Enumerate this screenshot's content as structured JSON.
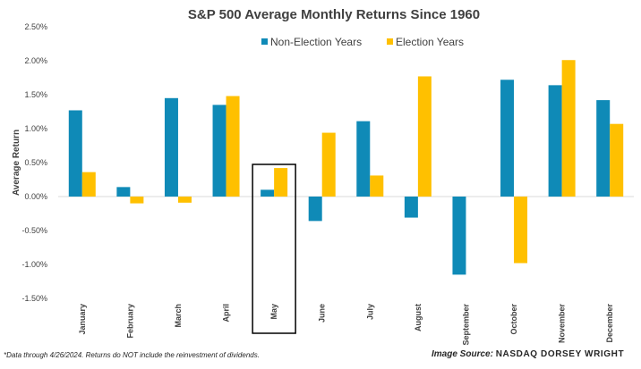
{
  "chart_data": {
    "type": "bar",
    "title": "S&P 500 Average Monthly Returns Since 1960",
    "ylabel": "Average Return",
    "xlabel": "",
    "ylim": [
      -1.5,
      2.5
    ],
    "yticks": [
      "2.50%",
      "2.00%",
      "1.50%",
      "1.00%",
      "0.50%",
      "0.00%",
      "-0.50%",
      "-1.00%",
      "-1.50%"
    ],
    "ytick_values": [
      2.5,
      2.0,
      1.5,
      1.0,
      0.5,
      0.0,
      -0.5,
      -1.0,
      -1.5
    ],
    "categories": [
      "January",
      "February",
      "March",
      "April",
      "May",
      "June",
      "July",
      "August",
      "September",
      "October",
      "November",
      "December"
    ],
    "series": [
      {
        "name": "Non-Election Years",
        "color": "#0f8ab7",
        "values": [
          1.27,
          0.14,
          1.45,
          1.35,
          0.1,
          -0.36,
          1.11,
          -0.31,
          -1.15,
          1.72,
          1.64,
          1.42
        ]
      },
      {
        "name": "Election Years",
        "color": "#ffc000",
        "values": [
          0.36,
          -0.1,
          -0.09,
          1.48,
          0.42,
          0.94,
          0.31,
          1.77,
          null,
          -0.98,
          2.01,
          1.07
        ]
      }
    ],
    "legend": "top",
    "grid": false,
    "highlight_category": "May"
  },
  "footnote": "*Data through 4/26/2024. Returns do NOT include the reinvestment of dividends.",
  "source": {
    "label": "Image Source:",
    "name": "NASDAQ DORSEY WRIGHT"
  }
}
